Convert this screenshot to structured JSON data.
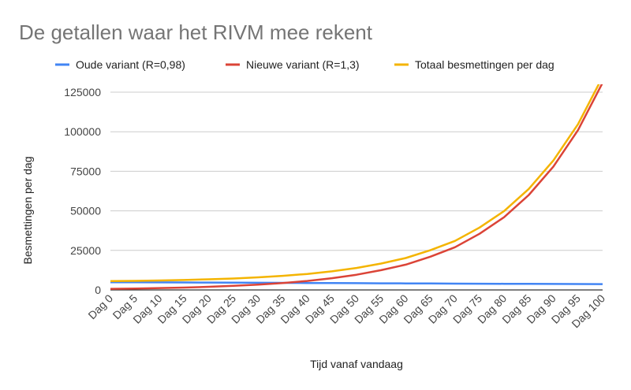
{
  "chart_data": {
    "type": "line",
    "title": "De getallen waar het RIVM mee rekent",
    "xlabel": "Tijd vanaf vandaag",
    "ylabel": "Besmettingen per dag",
    "ylim": [
      0,
      125000
    ],
    "yticks": [
      "0",
      "25000",
      "50000",
      "75000",
      "100000",
      "125000"
    ],
    "grid": true,
    "legend_position": "top",
    "categories": [
      "Dag 0",
      "Dag 5",
      "Dag 10",
      "Dag 15",
      "Dag 20",
      "Dag 25",
      "Dag 30",
      "Dag 35",
      "Dag 40",
      "Dag 45",
      "Dag 50",
      "Dag 55",
      "Dag 60",
      "Dag 65",
      "Dag 70",
      "Dag 75",
      "Dag 80",
      "Dag 85",
      "Dag 90",
      "Dag 95",
      "Dag 100"
    ],
    "series": [
      {
        "name": "Oude variant (R=0,98)",
        "color": "#4285f4",
        "values": [
          4900,
          4850,
          4800,
          4750,
          4700,
          4600,
          4550,
          4500,
          4400,
          4350,
          4300,
          4200,
          4150,
          4100,
          4000,
          3950,
          3900,
          3850,
          3800,
          3750,
          3700
        ]
      },
      {
        "name": "Nieuwe variant (R=1,3)",
        "color": "#db4437",
        "values": [
          700,
          900,
          1200,
          1500,
          2000,
          2600,
          3400,
          4400,
          5700,
          7400,
          9600,
          12500,
          16000,
          21000,
          27000,
          35500,
          46000,
          60000,
          78000,
          101000,
          131000
        ]
      },
      {
        "name": "Totaal besmettingen per dag",
        "color": "#f4b400",
        "values": [
          5600,
          5750,
          6000,
          6250,
          6700,
          7200,
          7950,
          8900,
          10100,
          11750,
          13900,
          16700,
          20150,
          25100,
          31000,
          39450,
          49900,
          63850,
          81800,
          104750,
          134700
        ]
      }
    ]
  }
}
